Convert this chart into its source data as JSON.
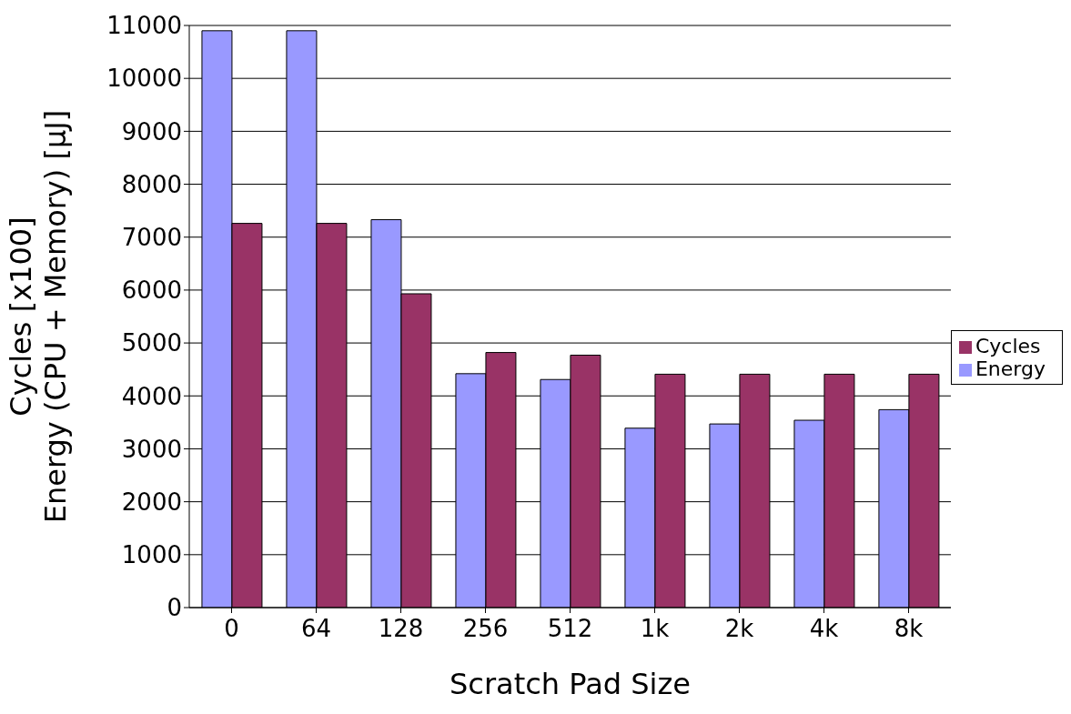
{
  "chart_data": {
    "type": "bar",
    "xlabel": "Scratch Pad Size",
    "ylabel": "Cycles [x100]\nEnergy (CPU + Memory) [µJ]",
    "categories": [
      "0",
      "64",
      "128",
      "256",
      "512",
      "1k",
      "2k",
      "4k",
      "8k"
    ],
    "series": [
      {
        "name": "Energy",
        "color": "#9999ff",
        "values": [
          10900,
          10900,
          7330,
          4420,
          4310,
          3390,
          3470,
          3540,
          3740
        ]
      },
      {
        "name": "Cycles",
        "color": "#993366",
        "values": [
          7260,
          7260,
          5930,
          4820,
          4770,
          4410,
          4410,
          4410,
          4410
        ]
      }
    ],
    "ylim": [
      0,
      11000
    ],
    "yticks": [
      0,
      1000,
      2000,
      3000,
      4000,
      5000,
      6000,
      7000,
      8000,
      9000,
      10000,
      11000
    ],
    "grid": "y",
    "legend": "right"
  }
}
